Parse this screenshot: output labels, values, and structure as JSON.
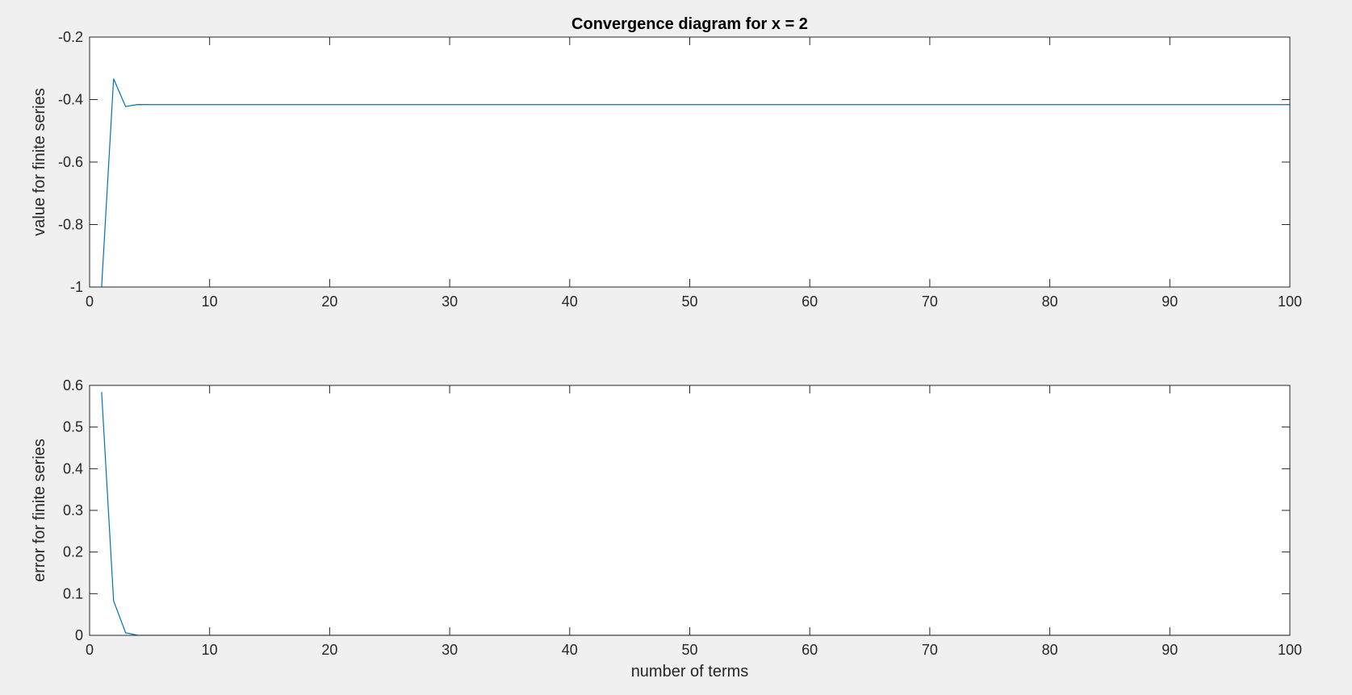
{
  "chart_data": [
    {
      "type": "line",
      "title": "Convergence diagram for x = 2",
      "xlabel": "",
      "ylabel": "value for finite series",
      "xlim": [
        0,
        100
      ],
      "ylim": [
        -1,
        -0.2
      ],
      "xticks": [
        0,
        10,
        20,
        30,
        40,
        50,
        60,
        70,
        80,
        90,
        100
      ],
      "xtick_labels": [
        "0",
        "10",
        "20",
        "30",
        "40",
        "50",
        "60",
        "70",
        "80",
        "90",
        "100"
      ],
      "yticks": [
        -1,
        -0.8,
        -0.6,
        -0.4,
        -0.2
      ],
      "ytick_labels": [
        "-1",
        "-0.8",
        "-0.6",
        "-0.4",
        "-0.2"
      ],
      "grid": false,
      "line_color": "#0072bd",
      "series": [
        {
          "x": [
            1,
            2,
            3,
            4,
            5,
            10,
            20,
            30,
            40,
            50,
            60,
            70,
            80,
            90,
            100
          ],
          "values": [
            -1.0,
            -0.3333,
            -0.4222,
            -0.4159,
            -0.4162,
            -0.4161,
            -0.4161,
            -0.4161,
            -0.4161,
            -0.4161,
            -0.4161,
            -0.4161,
            -0.4161,
            -0.4161,
            -0.4161
          ]
        }
      ]
    },
    {
      "type": "line",
      "title": "",
      "xlabel": "number of terms",
      "ylabel": "error for finite series",
      "xlim": [
        0,
        100
      ],
      "ylim": [
        0,
        0.6
      ],
      "xticks": [
        0,
        10,
        20,
        30,
        40,
        50,
        60,
        70,
        80,
        90,
        100
      ],
      "xtick_labels": [
        "0",
        "10",
        "20",
        "30",
        "40",
        "50",
        "60",
        "70",
        "80",
        "90",
        "100"
      ],
      "yticks": [
        0,
        0.1,
        0.2,
        0.3,
        0.4,
        0.5,
        0.6
      ],
      "ytick_labels": [
        "0",
        "0.1",
        "0.2",
        "0.3",
        "0.4",
        "0.5",
        "0.6"
      ],
      "grid": false,
      "line_color": "#0072bd",
      "series": [
        {
          "x": [
            1,
            2,
            3,
            4,
            5,
            10,
            20,
            30,
            40,
            50,
            60,
            70,
            80,
            90,
            100
          ],
          "values": [
            0.5839,
            0.0828,
            0.0061,
            0.0002,
            0.0,
            0.0,
            0.0,
            0.0,
            0.0,
            0.0,
            0.0,
            0.0,
            0.0,
            0.0,
            0.0
          ]
        }
      ]
    }
  ]
}
